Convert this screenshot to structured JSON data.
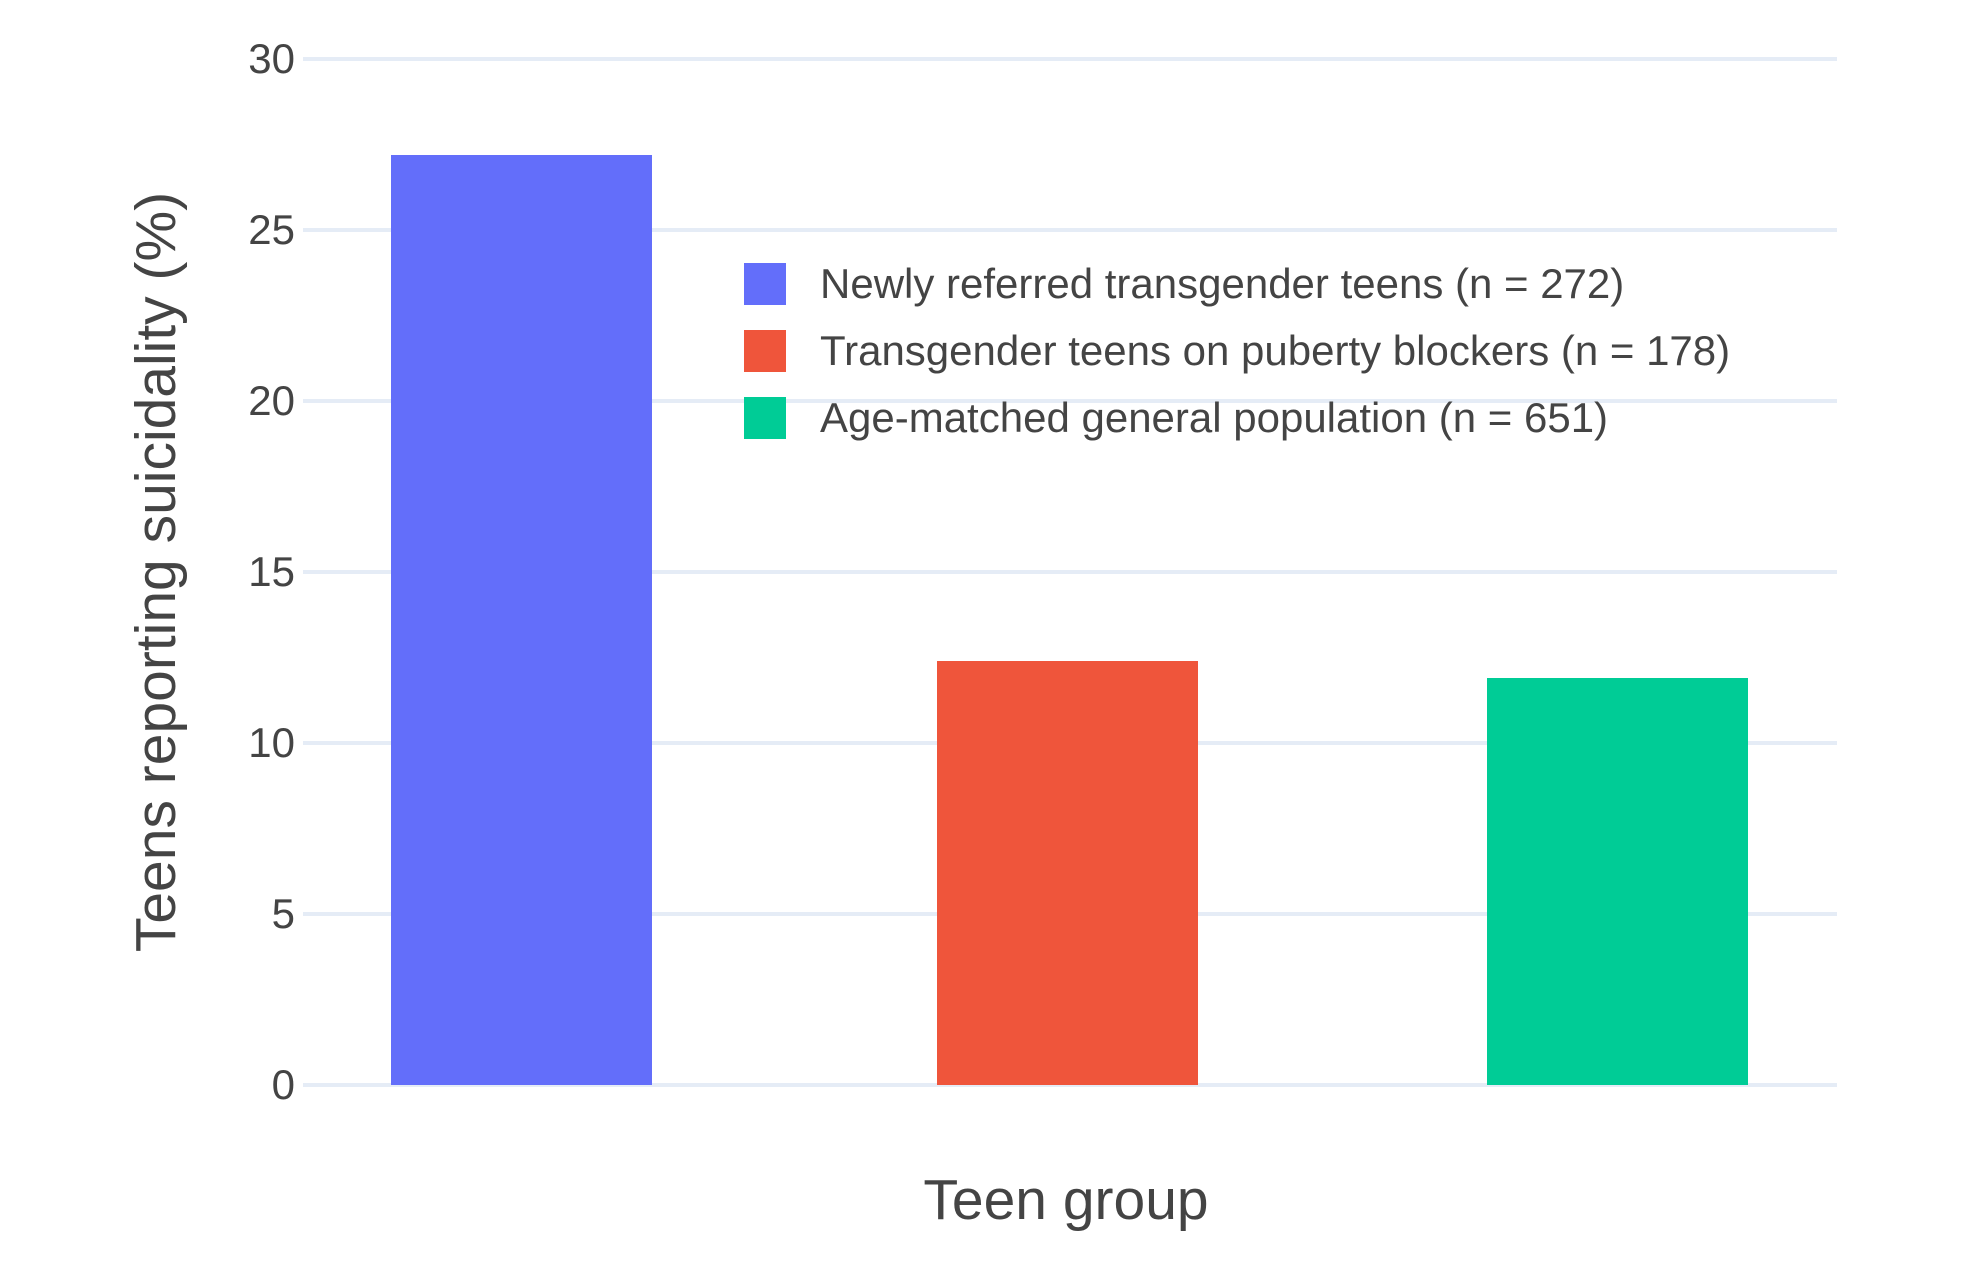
{
  "chart_data": {
    "type": "bar",
    "title": "",
    "xlabel": "Teen group",
    "ylabel": "Teens reporting suicidality (%)",
    "ylim": [
      0,
      30
    ],
    "yticks": [
      0,
      5,
      10,
      15,
      20,
      25,
      30
    ],
    "grid": true,
    "legend_position": "inside-top-left-of-plot",
    "categories": [
      "Newly referred transgender teens",
      "Transgender teens on puberty blockers",
      "Age-matched general population"
    ],
    "series": [
      {
        "name": "Newly referred transgender teens (n = 272)",
        "value": 27.2,
        "color": "#636EFA"
      },
      {
        "name": "Transgender teens on puberty blockers (n = 178)",
        "value": 12.4,
        "color": "#EF553B"
      },
      {
        "name": "Age-matched general population (n = 651)",
        "value": 11.9,
        "color": "#00CC96"
      }
    ]
  },
  "colors": {
    "background": "#FFFFFF",
    "gridline": "#E5ECF6",
    "text": "#444444"
  }
}
